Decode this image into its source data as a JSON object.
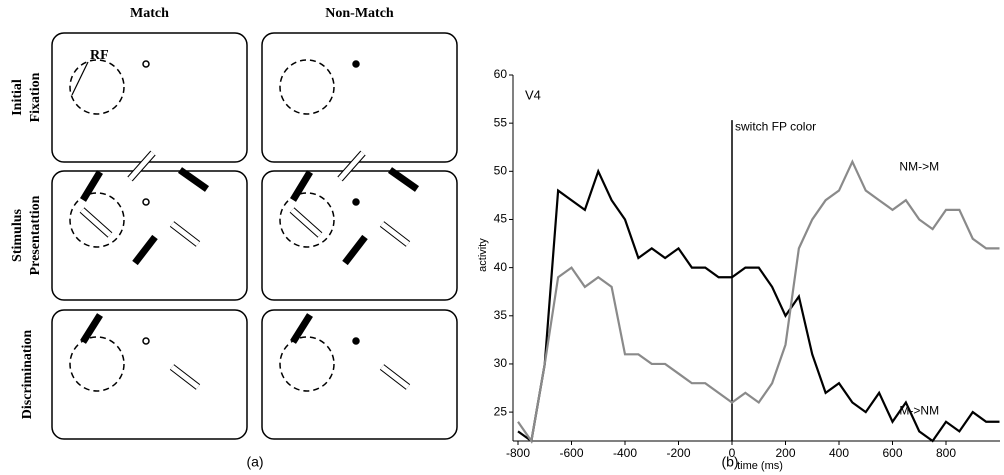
{
  "panel_a": {
    "columns": [
      "Match",
      "Non-Match"
    ],
    "rows": [
      [
        "Initial",
        "Fixation"
      ],
      [
        "Stimulus",
        "Presentattion"
      ],
      [
        "Discrimination"
      ]
    ],
    "rf_label": "RF",
    "label": "(a)"
  },
  "panel_b": {
    "label": "(b)"
  },
  "chart_data": {
    "type": "line",
    "title": "V4",
    "xlabel": "time (ms)",
    "ylabel": "activity",
    "x": [
      -800,
      -750,
      -700,
      -650,
      -600,
      -550,
      -500,
      -450,
      -400,
      -350,
      -300,
      -250,
      -200,
      -150,
      -100,
      -50,
      0,
      50,
      100,
      150,
      200,
      250,
      300,
      350,
      400,
      450,
      500,
      550,
      600,
      650,
      700,
      750,
      800,
      850,
      900,
      950,
      1000
    ],
    "series": [
      {
        "name": "M->NM",
        "color": "#000000",
        "values": [
          23,
          22,
          30,
          48,
          47,
          46,
          50,
          47,
          45,
          41,
          42,
          41,
          42,
          40,
          40,
          39,
          39,
          40,
          40,
          38,
          35,
          37,
          31,
          27,
          28,
          26,
          25,
          27,
          24,
          26,
          23,
          22,
          24,
          23,
          25,
          24,
          24
        ]
      },
      {
        "name": "NM->M",
        "color": "#8a8a8a",
        "values": [
          24,
          22,
          30,
          39,
          40,
          38,
          39,
          38,
          31,
          31,
          30,
          30,
          29,
          28,
          28,
          27,
          26,
          27,
          26,
          28,
          32,
          42,
          45,
          47,
          48,
          51,
          48,
          47,
          46,
          47,
          45,
          44,
          46,
          46,
          43,
          42,
          42
        ]
      }
    ],
    "annotations": [
      {
        "text": "switch FP color",
        "x": 0
      }
    ],
    "xlim": [
      -800,
      1000
    ],
    "xticks": [
      -800,
      -600,
      -400,
      -200,
      0,
      200,
      400,
      600,
      800
    ],
    "ylim": [
      22,
      60
    ],
    "yticks": [
      25,
      30,
      35,
      40,
      45,
      50,
      55,
      60
    ]
  }
}
